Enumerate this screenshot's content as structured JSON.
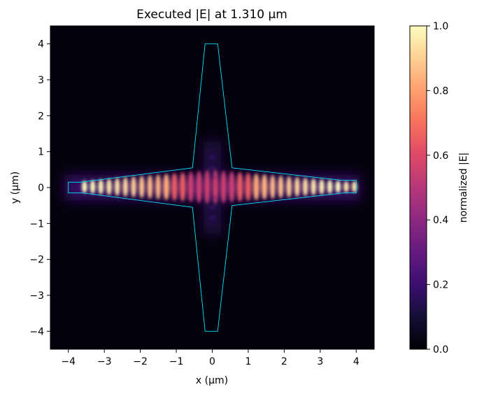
{
  "chart_data": {
    "type": "heatmap",
    "title": "Executed |E| at 1.310 µm",
    "xlabel": "x (µm)",
    "ylabel": "y (µm)",
    "xlim": [
      -4.5,
      4.5
    ],
    "ylim": [
      -4.5,
      4.5
    ],
    "xticks": [
      -4,
      -3,
      -2,
      -1,
      0,
      1,
      2,
      3,
      4
    ],
    "yticks": [
      -4,
      -3,
      -2,
      -1,
      0,
      1,
      2,
      3,
      4
    ],
    "xtick_labels": [
      "−4",
      "−3",
      "−2",
      "−1",
      "0",
      "1",
      "2",
      "3",
      "4"
    ],
    "ytick_labels": [
      "−4",
      "−3",
      "−2",
      "−1",
      "0",
      "1",
      "2",
      "3",
      "4"
    ],
    "colormap": "magma",
    "colorbar": {
      "label": "normalized |E|",
      "range": [
        0.0,
        1.0
      ],
      "ticks": [
        0.0,
        0.2,
        0.4,
        0.6,
        0.8,
        1.0
      ],
      "tick_labels": [
        "0.0",
        "0.2",
        "0.4",
        "0.6",
        "0.8",
        "1.0"
      ]
    },
    "field": {
      "description_source": "high |E| standing-wave pattern confined along the horizontal waveguide y≈0, x from about −3.7 to 4.0",
      "fringe_count": 34,
      "peak_value": 1.0
    },
    "outline": {
      "color": "#00e5ff",
      "points": [
        [
          -4.0,
          -0.15
        ],
        [
          -3.6,
          -0.15
        ],
        [
          -0.55,
          -0.55
        ],
        [
          -0.2,
          -4.0
        ],
        [
          0.15,
          -4.0
        ],
        [
          0.55,
          -0.5
        ],
        [
          3.65,
          -0.15
        ],
        [
          4.0,
          -0.15
        ],
        [
          4.0,
          0.2
        ],
        [
          3.6,
          0.2
        ],
        [
          0.55,
          0.55
        ],
        [
          0.15,
          4.0
        ],
        [
          -0.2,
          4.0
        ],
        [
          -0.55,
          0.55
        ],
        [
          -3.65,
          0.15
        ],
        [
          -4.0,
          0.15
        ]
      ]
    }
  }
}
